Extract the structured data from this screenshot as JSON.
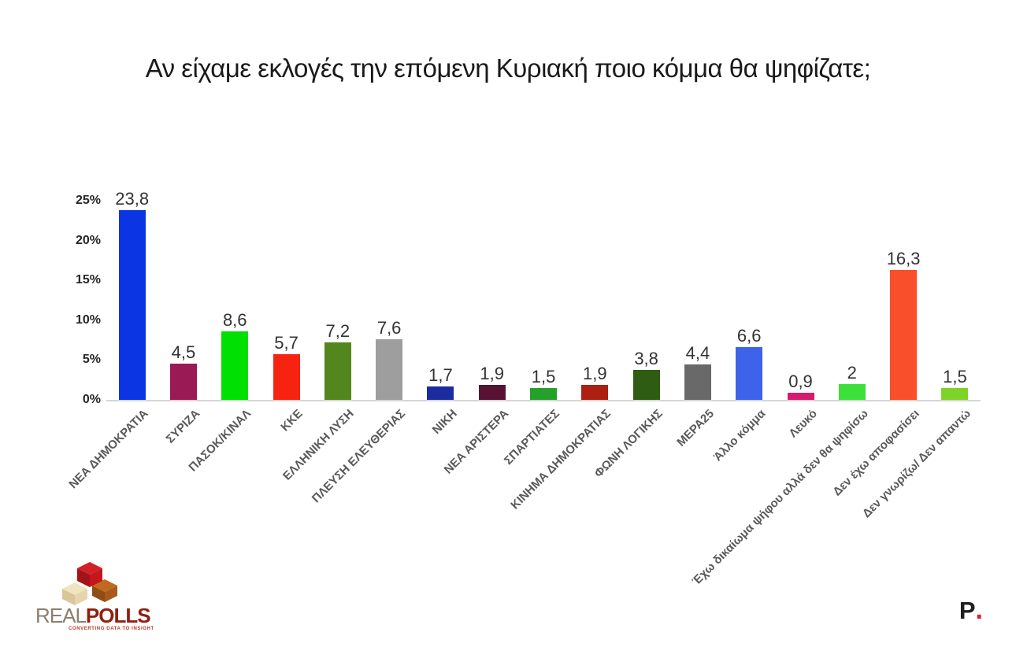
{
  "title": "Αν είχαμε εκλογές την επόμενη Κυριακή ποιο κόμμα θα ψηφίζατε;",
  "chart_data": {
    "type": "bar",
    "title": "Αν είχαμε εκλογές την επόμενη Κυριακή ποιο κόμμα θα ψηφίζατε;",
    "xlabel": "",
    "ylabel": "",
    "ylim": [
      0,
      25
    ],
    "grid": false,
    "legend": false,
    "y_ticks": [
      "0%",
      "5%",
      "10%",
      "15%",
      "20%",
      "25%"
    ],
    "categories": [
      "ΝΕΑ ΔΗΜΟΚΡΑΤΙΑ",
      "ΣΥΡΙΖΑ",
      "ΠΑΣΟΚ/ΚΙΝΑΛ",
      "ΚΚΕ",
      "ΕΛΛΗΝΙΚΗ ΛΥΣΗ",
      "ΠΛΕΥΣΗ ΕΛΕΥΘΕΡΙΑΣ",
      "ΝΙΚΗ",
      "ΝΕΑ ΑΡΙΣΤΕΡΑ",
      "ΣΠΑΡΤΙΑΤΕΣ",
      "ΚΙΝΗΜΑ ΔΗΜΟΚΡΑΤΙΑΣ",
      "ΦΩΝΗ ΛΟΓΙΚΗΣ",
      "ΜΕΡΑ25",
      "Άλλο κόμμα",
      "Λευκό",
      "Έχω δικαίωμα ψήφου αλλά δεν θα ψηφίσω",
      "Δεν έχω αποφασίσει",
      "Δεν γνωρίζω/ Δεν απαντώ"
    ],
    "values": [
      23.8,
      4.5,
      8.6,
      5.7,
      7.2,
      7.6,
      1.7,
      1.9,
      1.5,
      1.9,
      3.8,
      4.4,
      6.6,
      0.9,
      2,
      16.3,
      1.5
    ],
    "value_labels": [
      "23,8",
      "4,5",
      "8,6",
      "5,7",
      "7,2",
      "7,6",
      "1,7",
      "1,9",
      "1,5",
      "1,9",
      "3,8",
      "4,4",
      "6,6",
      "0,9",
      "2",
      "16,3",
      "1,5"
    ],
    "bar_colors": [
      "#0b35e3",
      "#9a1a56",
      "#00e001",
      "#f62311",
      "#53861d",
      "#9e9e9e",
      "#1b2c9f",
      "#581233",
      "#27a02b",
      "#ad1f10",
      "#2f5c13",
      "#696969",
      "#3c63ea",
      "#d81a6f",
      "#3be03b",
      "#f94f2b",
      "#7ed329"
    ]
  },
  "footer": {
    "left_logo": {
      "brand_real": "REAL",
      "brand_polls": "POLLS",
      "tagline": "CONVERTING DATA TO INSIGHT"
    },
    "right_logo": {
      "letter": "P",
      "dot": "●",
      "dot_color": "#e01b22"
    }
  }
}
